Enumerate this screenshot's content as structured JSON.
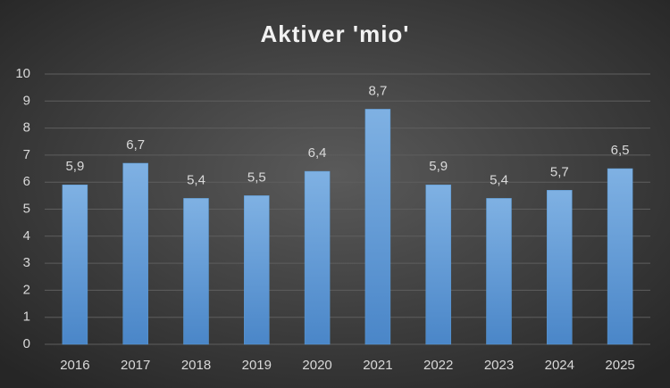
{
  "chart_data": {
    "type": "bar",
    "title": "Aktiver 'mio'",
    "categories": [
      "2016",
      "2017",
      "2018",
      "2019",
      "2020",
      "2021",
      "2022",
      "2023",
      "2024",
      "2025"
    ],
    "values": [
      5.9,
      6.7,
      5.4,
      5.5,
      6.4,
      8.7,
      5.9,
      5.4,
      5.7,
      6.5
    ],
    "value_labels": [
      "5,9",
      "6,7",
      "5,4",
      "5,5",
      "6,4",
      "8,7",
      "5,9",
      "5,4",
      "5,7",
      "6,5"
    ],
    "color": "#5b9bd5",
    "ylim": [
      0,
      10
    ],
    "yticks": [
      0,
      1,
      2,
      3,
      4,
      5,
      6,
      7,
      8,
      9,
      10
    ],
    "grid": true
  }
}
